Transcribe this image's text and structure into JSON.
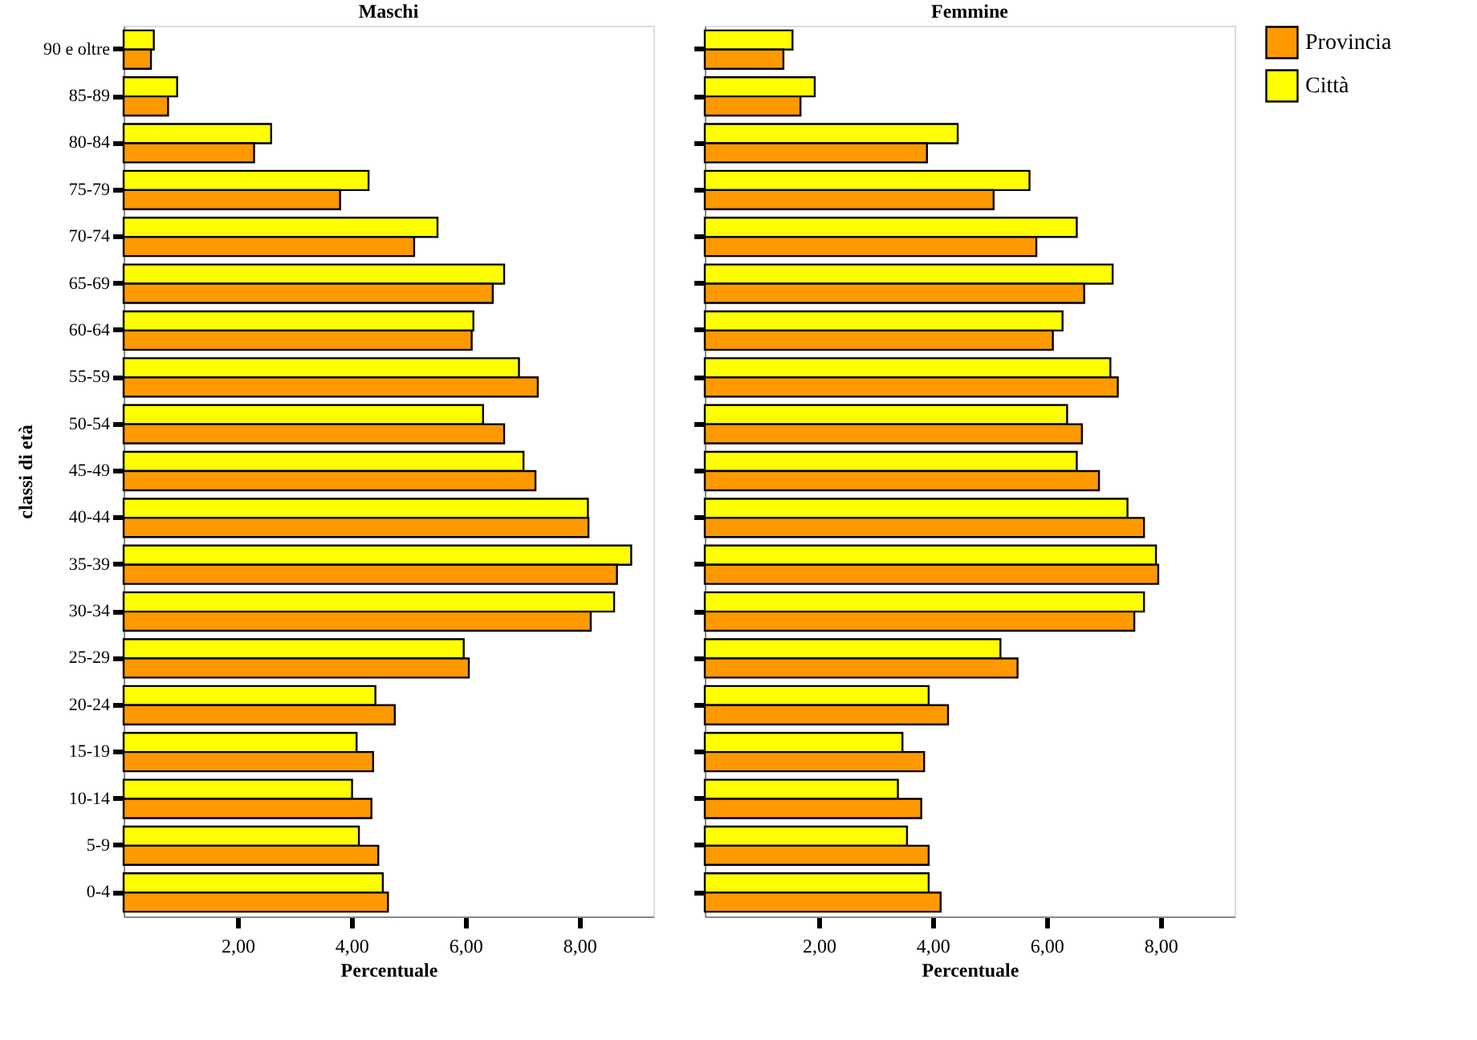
{
  "chart_data": [
    {
      "type": "bar",
      "orientation": "horizontal",
      "title": "Maschi",
      "xlabel": "Percentuale",
      "ylabel": "classi di età",
      "categories": [
        "90 e oltre",
        "85-89",
        "80-84",
        "75-79",
        "70-74",
        "65-69",
        "60-64",
        "55-59",
        "50-54",
        "45-49",
        "40-44",
        "35-39",
        "30-34",
        "25-29",
        "20-24",
        "15-19",
        "10-14",
        "5-9",
        "0-4"
      ],
      "series": [
        {
          "name": "Città",
          "color": "#ffff00",
          "values": [
            0.53,
            0.94,
            2.59,
            4.3,
            5.51,
            6.68,
            6.14,
            6.94,
            6.31,
            7.02,
            8.15,
            8.91,
            8.61,
            5.97,
            4.42,
            4.09,
            4.01,
            4.13,
            4.55
          ]
        },
        {
          "name": "Provincia",
          "color": "#ff9900",
          "values": [
            0.48,
            0.78,
            2.29,
            3.8,
            5.1,
            6.48,
            6.11,
            7.27,
            6.68,
            7.23,
            8.16,
            8.66,
            8.2,
            6.06,
            4.76,
            4.38,
            4.35,
            4.47,
            4.64
          ]
        }
      ],
      "xlim": [
        0,
        9.3
      ],
      "xticks": [
        {
          "value": 2,
          "label": "2,00"
        },
        {
          "value": 4,
          "label": "4,00"
        },
        {
          "value": 6,
          "label": "6,00"
        },
        {
          "value": 8,
          "label": "8,00"
        }
      ],
      "legend": "right"
    },
    {
      "type": "bar",
      "orientation": "horizontal",
      "title": "Femmine",
      "xlabel": "Percentuale",
      "categories": [
        null,
        null,
        null,
        null,
        null,
        null,
        null,
        null,
        null,
        null,
        null,
        null,
        null,
        null,
        null,
        null,
        null,
        null,
        null
      ],
      "series": [
        {
          "name": "Città",
          "color": "#ffff00",
          "values": [
            1.54,
            1.93,
            4.44,
            5.7,
            6.53,
            7.16,
            6.28,
            7.12,
            6.36,
            6.53,
            7.42,
            7.92,
            7.71,
            5.19,
            3.93,
            3.47,
            3.39,
            3.55,
            3.93
          ]
        },
        {
          "name": "Provincia",
          "color": "#ff9900",
          "values": [
            1.38,
            1.68,
            3.9,
            5.07,
            5.82,
            6.66,
            6.11,
            7.25,
            6.62,
            6.92,
            7.71,
            7.96,
            7.54,
            5.49,
            4.27,
            3.85,
            3.8,
            3.93,
            4.14
          ]
        }
      ],
      "xlim": [
        0,
        9.3
      ],
      "xticks": [
        {
          "value": 2,
          "label": "2,00"
        },
        {
          "value": 4,
          "label": "4,00"
        },
        {
          "value": 6,
          "label": "6,00"
        },
        {
          "value": 8,
          "label": "8,00"
        }
      ],
      "tick_labels": "x",
      "legend": "right"
    }
  ]
}
